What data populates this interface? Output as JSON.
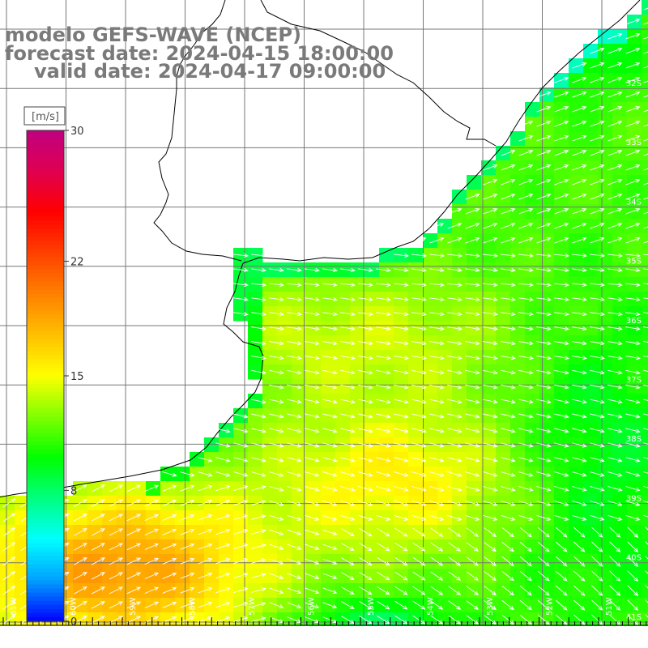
{
  "title": {
    "line1": "modelo GEFS-WAVE (NCEP)",
    "line2": "forecast date: 2024-04-15 18:00:00",
    "line3": "valid date: 2024-04-17 09:00:00"
  },
  "colorbar": {
    "unit": "[m/s]",
    "ticks": [
      {
        "value": 30,
        "label": "30"
      },
      {
        "value": 22,
        "label": "22"
      },
      {
        "value": 15,
        "label": "15"
      },
      {
        "value": 8,
        "label": "8"
      },
      {
        "value": 0,
        "label": "0"
      }
    ],
    "colors": [
      "#0000ff",
      "#00a0ff",
      "#00ffff",
      "#00ff80",
      "#00ff00",
      "#80ff00",
      "#ffff00",
      "#ffc000",
      "#ff8000",
      "#ff4000",
      "#ff0000",
      "#e00050",
      "#c00080"
    ]
  },
  "map": {
    "land_color": "#ffffff",
    "grid_color": "#777777",
    "arrow_color": "#ffffff",
    "lon_labels": [
      "61W",
      "60W",
      "59W",
      "58W",
      "57W",
      "56W",
      "55W",
      "54W",
      "53W",
      "52W",
      "51W"
    ],
    "lat_labels": [
      "32S",
      "33S",
      "34S",
      "35S",
      "36S",
      "37S",
      "38S",
      "39S",
      "40S",
      "41S"
    ]
  }
}
